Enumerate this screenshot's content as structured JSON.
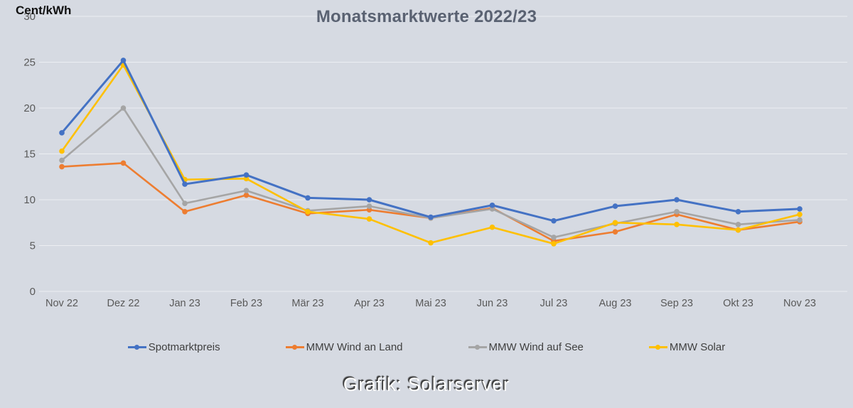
{
  "page": {
    "background": "#d6dae2"
  },
  "header": {
    "title": "Monatsmarktwerte 2022/23",
    "y_axis_unit": "Cent/kWh"
  },
  "caption": {
    "text": "Grafik: Solarserver"
  },
  "chart_data": {
    "type": "line",
    "title": "Monatsmarktwerte 2022/23",
    "xlabel": "",
    "ylabel": "Cent/kWh",
    "ylim": [
      0,
      30
    ],
    "yticks": [
      0,
      5,
      10,
      15,
      20,
      25,
      30
    ],
    "grid": true,
    "legend_position": "bottom",
    "categories": [
      "Nov 22",
      "Dez 22",
      "Jan 23",
      "Feb 23",
      "Mär 23",
      "Apr 23",
      "Mai 23",
      "Jun 23",
      "Jul 23",
      "Aug 23",
      "Sep 23",
      "Okt 23",
      "Nov 23"
    ],
    "series": [
      {
        "name": "MMW Wind an Land",
        "color": "#ED7D31",
        "values": [
          13.6,
          14.0,
          8.7,
          10.5,
          8.5,
          8.9,
          8.0,
          9.1,
          5.5,
          6.5,
          8.4,
          6.7,
          7.6
        ]
      },
      {
        "name": "MMW Wind auf See",
        "color": "#A5A5A5",
        "values": [
          14.3,
          20.0,
          9.6,
          11.0,
          8.8,
          9.3,
          8.0,
          9.0,
          5.9,
          7.4,
          8.7,
          7.3,
          7.8
        ]
      },
      {
        "name": "MMW Solar",
        "color": "#FFC000",
        "values": [
          15.3,
          24.7,
          12.2,
          12.3,
          8.7,
          7.9,
          5.3,
          7.0,
          5.2,
          7.5,
          7.3,
          6.7,
          8.4
        ]
      },
      {
        "name": "Spotmarktpreis",
        "color": "#4472C4",
        "values": [
          17.3,
          25.2,
          11.7,
          12.7,
          10.2,
          10.0,
          8.1,
          9.4,
          7.7,
          9.3,
          10.0,
          8.7,
          9.0
        ]
      }
    ],
    "legend_order": [
      "Spotmarktpreis",
      "MMW Wind an Land",
      "MMW Wind auf See",
      "MMW Solar"
    ]
  },
  "style": {
    "gridline_color": "rgba(255,255,255,0.55)",
    "tick_label_color": "#595959",
    "marker_radius": 3.8
  }
}
